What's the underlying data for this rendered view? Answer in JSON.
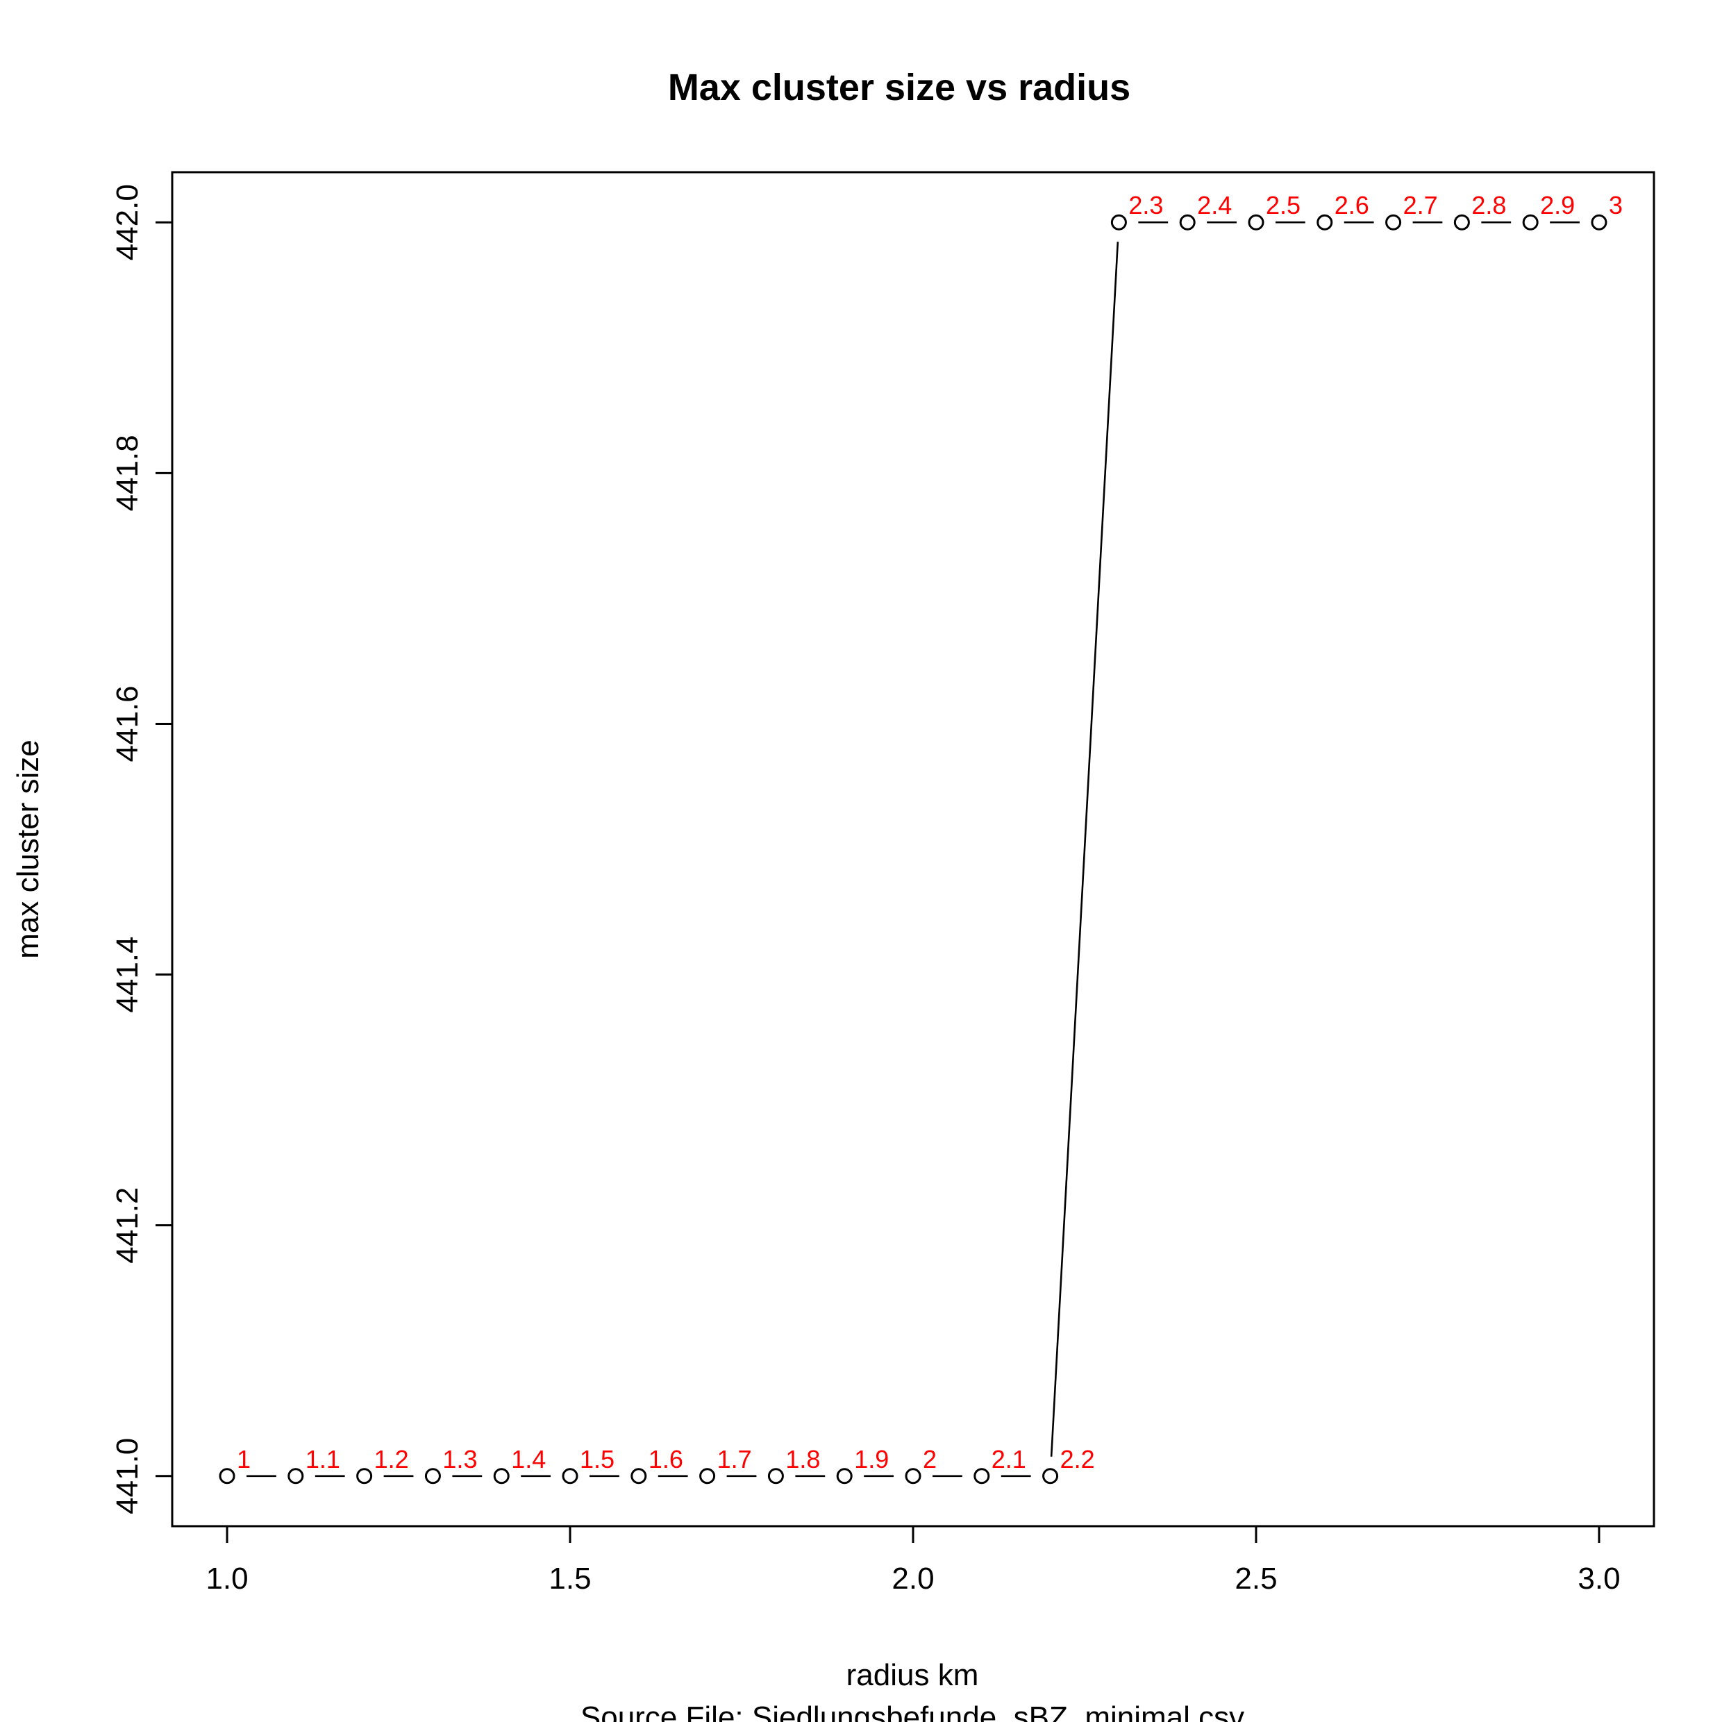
{
  "chart_data": {
    "type": "line",
    "title": "Max cluster size vs radius",
    "xlabel": "radius km",
    "subtitle": "Source File:  Siedlungsbefunde_sBZ_minimal.csv",
    "ylabel": "max cluster size",
    "xlim": [
      0.92,
      3.08
    ],
    "ylim": [
      440.96,
      442.04
    ],
    "x_ticks": [
      1.0,
      1.5,
      2.0,
      2.5,
      3.0
    ],
    "x_tick_labels": [
      "1.0",
      "1.5",
      "2.0",
      "2.5",
      "3.0"
    ],
    "y_ticks": [
      441.0,
      441.2,
      441.4,
      441.6,
      441.8,
      442.0
    ],
    "y_tick_labels": [
      "441.0",
      "441.2",
      "441.4",
      "441.6",
      "441.8",
      "442.0"
    ],
    "grid": false,
    "series": [
      {
        "x": [
          1.0,
          1.1,
          1.2,
          1.3,
          1.4,
          1.5,
          1.6,
          1.7,
          1.8,
          1.9,
          2.0,
          2.1,
          2.2,
          2.3,
          2.4,
          2.5,
          2.6,
          2.7,
          2.8,
          2.9,
          3.0
        ],
        "values": [
          441,
          441,
          441,
          441,
          441,
          441,
          441,
          441,
          441,
          441,
          441,
          441,
          441,
          442,
          442,
          442,
          442,
          442,
          442,
          442,
          442
        ],
        "point_labels": [
          "1",
          "1.1",
          "1.2",
          "1.3",
          "1.4",
          "1.5",
          "1.6",
          "1.7",
          "1.8",
          "1.9",
          "2",
          "2.1",
          "2.2",
          "2.3",
          "2.4",
          "2.5",
          "2.6",
          "2.7",
          "2.8",
          "2.9",
          "3"
        ],
        "color": "#000000",
        "label_color": "#ff0000",
        "marker": "open-circle"
      }
    ]
  }
}
